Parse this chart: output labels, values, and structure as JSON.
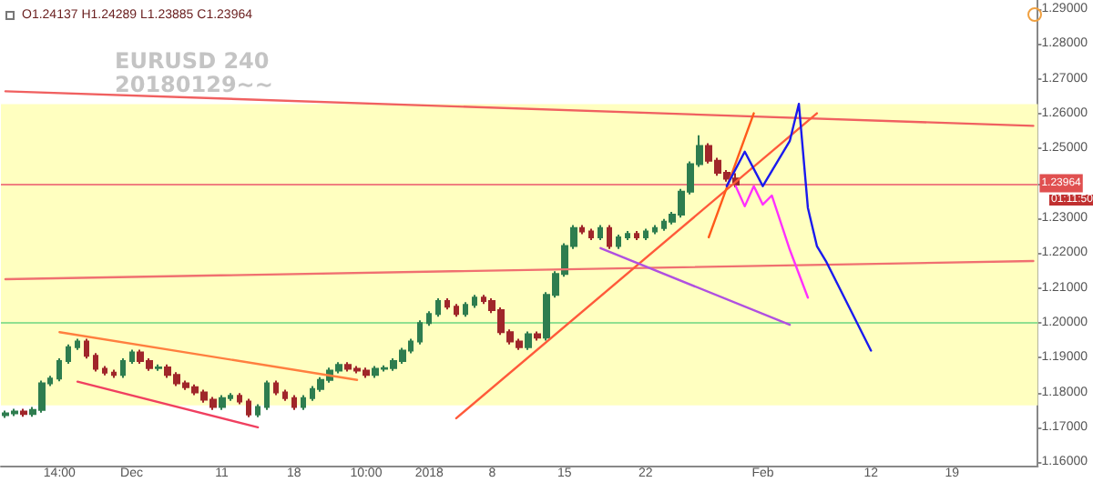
{
  "chart_data": {
    "type": "candlestick",
    "title": "EURUSD 240\n20180129~~",
    "annotations": [
      "O1.24137 H1.24289 L1.23885 C1.23964",
      "01:11:50"
    ],
    "categories": [
      null,
      null,
      null,
      null,
      null,
      null,
      "14:00",
      null,
      null,
      null,
      null,
      null,
      null,
      null,
      "Dec",
      null,
      null,
      null,
      null,
      null,
      null,
      null,
      null,
      null,
      "11",
      null,
      null,
      null,
      null,
      null,
      null,
      null,
      "18",
      null,
      null,
      null,
      null,
      null,
      null,
      null,
      "10:00",
      null,
      null,
      null,
      null,
      null,
      null,
      "2018",
      null,
      null,
      null,
      null,
      null,
      null,
      "8",
      null,
      null,
      null,
      null,
      null,
      null,
      null,
      "15",
      null,
      null,
      null,
      null,
      null,
      null,
      null,
      null,
      "22",
      null,
      null,
      null,
      null,
      null,
      null,
      null,
      null,
      null,
      null,
      null,
      null,
      "Feb",
      null,
      null,
      null,
      null,
      null,
      null,
      null,
      null,
      null,
      null,
      null,
      "12",
      null,
      null,
      null,
      null,
      null,
      null,
      null,
      null,
      "19",
      null,
      null,
      null,
      null,
      null,
      null,
      null,
      null,
      null
    ],
    "ohlc": [
      [
        1.1735,
        1.1748,
        1.1727,
        1.174
      ],
      [
        1.174,
        1.1753,
        1.1732,
        1.1745
      ],
      [
        1.1745,
        1.1753,
        1.173,
        1.1738
      ],
      [
        1.1738,
        1.1758,
        1.173,
        1.175
      ],
      [
        1.175,
        1.1834,
        1.1742,
        1.1826
      ],
      [
        1.1826,
        1.1848,
        1.1818,
        1.184
      ],
      [
        1.184,
        1.1898,
        1.1832,
        1.189
      ],
      [
        1.189,
        1.1938,
        1.1882,
        1.193
      ],
      [
        1.193,
        1.1954,
        1.1922,
        1.1946
      ],
      [
        1.1946,
        1.1954,
        1.1897,
        1.1905
      ],
      [
        1.1905,
        1.1913,
        1.186,
        1.1868
      ],
      [
        1.1868,
        1.1876,
        1.1849,
        1.1857
      ],
      [
        1.1857,
        1.1865,
        1.1842,
        1.185
      ],
      [
        1.185,
        1.1898,
        1.1842,
        1.189
      ],
      [
        1.189,
        1.1923,
        1.1882,
        1.1915
      ],
      [
        1.1915,
        1.1923,
        1.1882,
        1.189
      ],
      [
        1.189,
        1.1898,
        1.1862,
        1.187
      ],
      [
        1.187,
        1.188,
        1.1862,
        1.1872
      ],
      [
        1.1872,
        1.188,
        1.1842,
        1.185
      ],
      [
        1.185,
        1.1858,
        1.1818,
        1.1826
      ],
      [
        1.1826,
        1.1834,
        1.1807,
        1.1815
      ],
      [
        1.1815,
        1.1823,
        1.1792,
        1.18
      ],
      [
        1.18,
        1.1808,
        1.1771,
        1.1779
      ],
      [
        1.1779,
        1.1787,
        1.175,
        1.1758
      ],
      [
        1.1758,
        1.1792,
        1.175,
        1.1784
      ],
      [
        1.1784,
        1.1798,
        1.1776,
        1.179
      ],
      [
        1.179,
        1.1798,
        1.1766,
        1.1774
      ],
      [
        1.1774,
        1.1782,
        1.1729,
        1.1737
      ],
      [
        1.1737,
        1.1766,
        1.1729,
        1.1758
      ],
      [
        1.1758,
        1.1834,
        1.175,
        1.1826
      ],
      [
        1.1826,
        1.1834,
        1.1792,
        1.18
      ],
      [
        1.18,
        1.1808,
        1.1776,
        1.1784
      ],
      [
        1.1784,
        1.1792,
        1.175,
        1.1758
      ],
      [
        1.1758,
        1.1792,
        1.175,
        1.1784
      ],
      [
        1.1784,
        1.1818,
        1.1776,
        1.181
      ],
      [
        1.181,
        1.1844,
        1.1802,
        1.1836
      ],
      [
        1.1836,
        1.1871,
        1.1828,
        1.1863
      ],
      [
        1.1863,
        1.1887,
        1.1855,
        1.1879
      ],
      [
        1.1879,
        1.1887,
        1.186,
        1.1868
      ],
      [
        1.1868,
        1.1876,
        1.1855,
        1.1863
      ],
      [
        1.1863,
        1.1871,
        1.1842,
        1.185
      ],
      [
        1.185,
        1.1876,
        1.1842,
        1.1868
      ],
      [
        1.1868,
        1.1878,
        1.186,
        1.187
      ],
      [
        1.187,
        1.1898,
        1.1862,
        1.189
      ],
      [
        1.189,
        1.1928,
        1.1882,
        1.192
      ],
      [
        1.192,
        1.1954,
        1.1912,
        1.1946
      ],
      [
        1.1946,
        1.2007,
        1.1938,
        1.1999
      ],
      [
        1.1999,
        1.2033,
        1.1991,
        1.2025
      ],
      [
        1.2025,
        1.207,
        1.2017,
        1.2062
      ],
      [
        1.2062,
        1.207,
        1.2038,
        1.2046
      ],
      [
        1.2046,
        1.2054,
        1.2017,
        1.2025
      ],
      [
        1.2025,
        1.2059,
        1.2017,
        1.2051
      ],
      [
        1.2051,
        1.208,
        1.2043,
        1.2072
      ],
      [
        1.2072,
        1.208,
        1.2054,
        1.2062
      ],
      [
        1.2062,
        1.207,
        1.2028,
        1.2036
      ],
      [
        1.2036,
        1.2044,
        1.1965,
        1.1973
      ],
      [
        1.1973,
        1.1981,
        1.1938,
        1.1946
      ],
      [
        1.1946,
        1.1954,
        1.1922,
        1.193
      ],
      [
        1.193,
        1.1975,
        1.1922,
        1.1967
      ],
      [
        1.1967,
        1.1975,
        1.1949,
        1.1957
      ],
      [
        1.1957,
        1.2088,
        1.1949,
        1.208
      ],
      [
        1.208,
        1.2148,
        1.2072,
        1.214
      ],
      [
        1.214,
        1.2228,
        1.2132,
        1.222
      ],
      [
        1.222,
        1.228,
        1.2212,
        1.2272
      ],
      [
        1.2272,
        1.228,
        1.2254,
        1.2262
      ],
      [
        1.2262,
        1.227,
        1.2237,
        1.2245
      ],
      [
        1.2245,
        1.228,
        1.2237,
        1.2272
      ],
      [
        1.2272,
        1.228,
        1.2212,
        1.222
      ],
      [
        1.222,
        1.2253,
        1.2212,
        1.2245
      ],
      [
        1.2245,
        1.2263,
        1.2237,
        1.2255
      ],
      [
        1.2255,
        1.2263,
        1.2237,
        1.2245
      ],
      [
        1.2245,
        1.227,
        1.2237,
        1.2262
      ],
      [
        1.2262,
        1.228,
        1.2254,
        1.2272
      ],
      [
        1.2272,
        1.2298,
        1.2264,
        1.229
      ],
      [
        1.229,
        1.2318,
        1.2282,
        1.231
      ],
      [
        1.231,
        1.2384,
        1.2302,
        1.2376
      ],
      [
        1.2376,
        1.2463,
        1.2368,
        1.2455
      ],
      [
        1.2455,
        1.2538,
        1.2447,
        1.2507
      ],
      [
        1.2507,
        1.2515,
        1.2457,
        1.2465
      ],
      [
        1.2465,
        1.2473,
        1.2422,
        1.243
      ],
      [
        1.243,
        1.2438,
        1.2405,
        1.2413
      ],
      [
        1.24137,
        1.24289,
        1.23885,
        1.23964
      ],
      null,
      null,
      null,
      null,
      null,
      null,
      null,
      null,
      null,
      null,
      null,
      null,
      null,
      null,
      null,
      null,
      null,
      null,
      null,
      null,
      null,
      null,
      null,
      null,
      null,
      null,
      null,
      null,
      null,
      null,
      null,
      null,
      null
    ],
    "colors": [
      "#2e7d4f",
      "#2e7d4f",
      "#a0262a",
      "#2e7d4f",
      "#2e7d4f",
      "#2e7d4f",
      "#2e7d4f",
      "#2e7d4f",
      "#2e7d4f",
      "#a0262a",
      "#a0262a",
      "#a0262a",
      "#a0262a",
      "#2e7d4f",
      "#2e7d4f",
      "#a0262a",
      "#a0262a",
      "#2e7d4f",
      "#a0262a",
      "#a0262a",
      "#a0262a",
      "#a0262a",
      "#a0262a",
      "#a0262a",
      "#2e7d4f",
      "#2e7d4f",
      "#a0262a",
      "#a0262a",
      "#2e7d4f",
      "#2e7d4f",
      "#a0262a",
      "#a0262a",
      "#a0262a",
      "#2e7d4f",
      "#2e7d4f",
      "#2e7d4f",
      "#2e7d4f",
      "#2e7d4f",
      "#a0262a",
      "#a0262a",
      "#a0262a",
      "#2e7d4f",
      "#2e7d4f",
      "#2e7d4f",
      "#2e7d4f",
      "#2e7d4f",
      "#2e7d4f",
      "#2e7d4f",
      "#2e7d4f",
      "#a0262a",
      "#a0262a",
      "#2e7d4f",
      "#2e7d4f",
      "#a0262a",
      "#a0262a",
      "#a0262a",
      "#a0262a",
      "#a0262a",
      "#2e7d4f",
      "#a0262a",
      "#2e7d4f",
      "#2e7d4f",
      "#2e7d4f",
      "#2e7d4f",
      "#a0262a",
      "#a0262a",
      "#2e7d4f",
      "#a0262a",
      "#2e7d4f",
      "#2e7d4f",
      "#a0262a",
      "#2e7d4f",
      "#2e7d4f",
      "#2e7d4f",
      "#2e7d4f",
      "#2e7d4f",
      "#2e7d4f",
      "#2e7d4f",
      "#a0262a",
      "#a0262a",
      "#a0262a",
      "#a0262a",
      null,
      null,
      null,
      null,
      null,
      null,
      null,
      null,
      null,
      null,
      null,
      null,
      null,
      null,
      null,
      null,
      null,
      null,
      null,
      null,
      null,
      null,
      null,
      null,
      null,
      null,
      null,
      null,
      null,
      null,
      null,
      null,
      null
    ],
    "series": [
      {
        "type": "line",
        "color": "#f06060",
        "values": [
          1.2664,
          null,
          null,
          null,
          null,
          null,
          null,
          null,
          null,
          null,
          null,
          null,
          null,
          null,
          null,
          null,
          null,
          null,
          null,
          null,
          null,
          null,
          null,
          null,
          null,
          null,
          null,
          null,
          null,
          null,
          null,
          null,
          null,
          null,
          null,
          null,
          null,
          null,
          null,
          null,
          null,
          null,
          null,
          null,
          null,
          null,
          null,
          null,
          null,
          null,
          null,
          null,
          null,
          null,
          null,
          null,
          null,
          null,
          null,
          null,
          null,
          null,
          null,
          null,
          null,
          null,
          null,
          null,
          null,
          null,
          null,
          null,
          null,
          null,
          null,
          null,
          null,
          null,
          null,
          null,
          null,
          null,
          null,
          null,
          null,
          null,
          null,
          null,
          null,
          null,
          null,
          null,
          null,
          null,
          null,
          null,
          null,
          null,
          null,
          null,
          null,
          null,
          null,
          null,
          null,
          null,
          null,
          null,
          null,
          null,
          null,
          null,
          null,
          null,
          1.2565
        ]
      },
      {
        "type": "line",
        "color": "#f07070",
        "values": [
          1.2125,
          null,
          null,
          null,
          null,
          null,
          null,
          null,
          null,
          null,
          null,
          null,
          null,
          null,
          null,
          null,
          null,
          null,
          null,
          null,
          null,
          null,
          null,
          null,
          null,
          null,
          null,
          null,
          null,
          null,
          null,
          null,
          null,
          null,
          null,
          null,
          null,
          null,
          null,
          null,
          null,
          null,
          null,
          null,
          null,
          null,
          null,
          null,
          null,
          null,
          null,
          null,
          null,
          null,
          null,
          null,
          null,
          null,
          null,
          null,
          null,
          null,
          null,
          null,
          null,
          null,
          null,
          null,
          null,
          null,
          null,
          null,
          null,
          null,
          null,
          null,
          null,
          null,
          null,
          null,
          null,
          null,
          null,
          null,
          null,
          null,
          null,
          null,
          null,
          null,
          null,
          null,
          null,
          null,
          null,
          null,
          null,
          null,
          null,
          null,
          null,
          null,
          null,
          null,
          null,
          null,
          null,
          null,
          null,
          null,
          null,
          null,
          null,
          null,
          1.2177
        ]
      },
      {
        "type": "line",
        "color": "#ff7f3f",
        "values": [
          null,
          null,
          null,
          null,
          null,
          null,
          1.1973,
          null,
          null,
          null,
          null,
          null,
          null,
          null,
          null,
          null,
          null,
          null,
          null,
          null,
          null,
          null,
          null,
          null,
          null,
          null,
          null,
          null,
          null,
          null,
          null,
          null,
          null,
          null,
          null,
          null,
          null,
          null,
          null,
          1.1836,
          null,
          null,
          null,
          null,
          null,
          null,
          null,
          null,
          null,
          null,
          null,
          null,
          null,
          null,
          null,
          null,
          null,
          null,
          null,
          null,
          null,
          null,
          null,
          null,
          null,
          null,
          null,
          null,
          null,
          null,
          null,
          null,
          null,
          null,
          null,
          null,
          null,
          null,
          null,
          null,
          null,
          null,
          null,
          null,
          null,
          null,
          null,
          null,
          null,
          null,
          null,
          null,
          null,
          null,
          null,
          null,
          null,
          null,
          null,
          null,
          null,
          null,
          null,
          null,
          null,
          null,
          null,
          null,
          null,
          null,
          null,
          null,
          null,
          null,
          null
        ]
      },
      {
        "type": "line",
        "color": "#f04060",
        "values": [
          null,
          null,
          null,
          null,
          null,
          null,
          null,
          null,
          1.1831,
          null,
          null,
          null,
          null,
          null,
          null,
          null,
          null,
          null,
          null,
          null,
          null,
          null,
          null,
          null,
          null,
          null,
          null,
          null,
          1.17,
          null,
          null,
          null,
          null,
          null,
          null,
          null,
          null,
          null,
          null,
          null,
          null,
          null,
          null,
          null,
          null,
          null,
          null,
          null,
          null,
          null,
          null,
          null,
          null,
          null,
          null,
          null,
          null,
          null,
          null,
          null,
          null,
          null,
          null,
          null,
          null,
          null,
          null,
          null,
          null,
          null,
          null,
          null,
          null,
          null,
          null,
          null,
          null,
          null,
          null,
          null,
          null,
          null,
          null,
          null,
          null,
          null,
          null,
          null,
          null,
          null,
          null,
          null,
          null,
          null,
          null,
          null,
          null,
          null,
          null,
          null,
          null,
          null,
          null,
          null,
          null,
          null,
          null,
          null,
          null,
          null,
          null,
          null,
          null,
          null,
          null
        ]
      },
      {
        "type": "line",
        "color": "#ff5a3a",
        "values": [
          null,
          null,
          null,
          null,
          null,
          null,
          null,
          null,
          null,
          null,
          null,
          null,
          null,
          null,
          null,
          null,
          null,
          null,
          null,
          null,
          null,
          null,
          null,
          null,
          null,
          null,
          null,
          null,
          null,
          null,
          null,
          null,
          null,
          null,
          null,
          null,
          null,
          null,
          null,
          null,
          null,
          null,
          null,
          null,
          null,
          null,
          null,
          null,
          null,
          null,
          1.1726,
          null,
          null,
          null,
          null,
          null,
          null,
          null,
          null,
          null,
          null,
          null,
          null,
          null,
          null,
          null,
          null,
          null,
          null,
          null,
          null,
          null,
          null,
          null,
          null,
          null,
          null,
          null,
          null,
          null,
          null,
          null,
          null,
          null,
          null,
          null,
          null,
          null,
          null,
          null,
          1.2601,
          null,
          null,
          null,
          null,
          null,
          null,
          null,
          null,
          null,
          null,
          null,
          null,
          null,
          null,
          null,
          null,
          null,
          null,
          null,
          null,
          null,
          null,
          null,
          null
        ]
      },
      {
        "type": "line",
        "color": "#ff5a1a",
        "values": [
          null,
          null,
          null,
          null,
          null,
          null,
          null,
          null,
          null,
          null,
          null,
          null,
          null,
          null,
          null,
          null,
          null,
          null,
          null,
          null,
          null,
          null,
          null,
          null,
          null,
          null,
          null,
          null,
          null,
          null,
          null,
          null,
          null,
          null,
          null,
          null,
          null,
          null,
          null,
          null,
          null,
          null,
          null,
          null,
          null,
          null,
          null,
          null,
          null,
          null,
          null,
          null,
          null,
          null,
          null,
          null,
          null,
          null,
          null,
          null,
          null,
          null,
          null,
          null,
          null,
          null,
          null,
          null,
          null,
          null,
          null,
          null,
          null,
          null,
          null,
          null,
          null,
          null,
          1.2245,
          null,
          null,
          null,
          null,
          1.2601,
          null,
          null,
          null,
          null,
          null,
          null,
          null,
          null,
          null,
          null,
          null,
          null,
          null,
          null,
          null,
          null,
          null,
          null,
          null,
          null,
          null,
          null,
          null,
          null,
          null,
          null,
          null,
          null,
          null,
          null,
          null
        ]
      },
      {
        "type": "line",
        "color": "#b050e0",
        "values": [
          null,
          null,
          null,
          null,
          null,
          null,
          null,
          null,
          null,
          null,
          null,
          null,
          null,
          null,
          null,
          null,
          null,
          null,
          null,
          null,
          null,
          null,
          null,
          null,
          null,
          null,
          null,
          null,
          null,
          null,
          null,
          null,
          null,
          null,
          null,
          null,
          null,
          null,
          null,
          null,
          null,
          null,
          null,
          null,
          null,
          null,
          null,
          null,
          null,
          null,
          null,
          null,
          null,
          null,
          null,
          null,
          null,
          null,
          null,
          null,
          null,
          null,
          null,
          null,
          null,
          null,
          1.2214,
          null,
          null,
          null,
          null,
          null,
          null,
          null,
          null,
          null,
          null,
          null,
          null,
          null,
          null,
          null,
          null,
          null,
          null,
          null,
          null,
          1.1994,
          null,
          null,
          null,
          null,
          null,
          null,
          null,
          null,
          null,
          null,
          null,
          null,
          null,
          null,
          null,
          null,
          null,
          null,
          null,
          null,
          null,
          null,
          null,
          null,
          null,
          null,
          null
        ]
      },
      {
        "type": "line",
        "color": "#1a1aee",
        "values": [
          null,
          null,
          null,
          null,
          null,
          null,
          null,
          null,
          null,
          null,
          null,
          null,
          null,
          null,
          null,
          null,
          null,
          null,
          null,
          null,
          null,
          null,
          null,
          null,
          null,
          null,
          null,
          null,
          null,
          null,
          null,
          null,
          null,
          null,
          null,
          null,
          null,
          null,
          null,
          null,
          null,
          null,
          null,
          null,
          null,
          null,
          null,
          null,
          null,
          null,
          null,
          null,
          null,
          null,
          null,
          null,
          null,
          null,
          null,
          null,
          null,
          null,
          null,
          null,
          null,
          null,
          null,
          null,
          null,
          null,
          null,
          null,
          null,
          null,
          null,
          null,
          null,
          null,
          null,
          null,
          1.2392,
          null,
          1.2491,
          null,
          1.2392,
          null,
          null,
          1.2522,
          1.2628,
          1.233,
          1.222,
          1.2177,
          null,
          null,
          null,
          null,
          1.192,
          null,
          null,
          null,
          null,
          null,
          null,
          null,
          null,
          null,
          null,
          null,
          null,
          null,
          null,
          null,
          null,
          null,
          null
        ]
      },
      {
        "type": "line",
        "color": "#ff30ff",
        "values": [
          null,
          null,
          null,
          null,
          null,
          null,
          null,
          null,
          null,
          null,
          null,
          null,
          null,
          null,
          null,
          null,
          null,
          null,
          null,
          null,
          null,
          null,
          null,
          null,
          null,
          null,
          null,
          null,
          null,
          null,
          null,
          null,
          null,
          null,
          null,
          null,
          null,
          null,
          null,
          null,
          null,
          null,
          null,
          null,
          null,
          null,
          null,
          null,
          null,
          null,
          null,
          null,
          null,
          null,
          null,
          null,
          null,
          null,
          null,
          null,
          null,
          null,
          null,
          null,
          null,
          null,
          null,
          null,
          null,
          null,
          null,
          null,
          null,
          null,
          null,
          null,
          null,
          null,
          null,
          null,
          null,
          1.2392,
          1.2334,
          1.2392,
          1.2339,
          1.2365,
          null,
          1.2209,
          null,
          1.2072,
          null,
          null,
          null,
          null,
          null,
          null,
          null,
          null,
          null,
          null,
          null,
          null,
          null,
          null,
          null,
          null,
          null,
          null,
          null,
          null,
          null,
          null,
          null,
          null,
          null
        ]
      }
    ],
    "bands": [
      {
        "axis": "y",
        "from": 1.1763,
        "to": 1.2627,
        "color": "#ffffc0"
      }
    ],
    "ref_lines": [
      {
        "axis": "y",
        "value": 1.2,
        "color": "#90e090"
      },
      {
        "axis": "y",
        "value": 1.23964,
        "label": "1.23964",
        "color": "#f08080"
      }
    ],
    "ylim": [
      1.159,
      1.2926
    ],
    "yticks": [
      {
        "value": 1.16,
        "label": "1.16000"
      },
      {
        "value": 1.17,
        "label": "1.17000"
      },
      {
        "value": 1.18,
        "label": "1.18000"
      },
      {
        "value": 1.19,
        "label": "1.19000"
      },
      {
        "value": 1.2,
        "label": "1.20000"
      },
      {
        "value": 1.21,
        "label": "1.21000"
      },
      {
        "value": 1.22,
        "label": "1.22000"
      },
      {
        "value": 1.23,
        "label": "1.23000"
      },
      {
        "value": 1.24,
        "label": null
      },
      {
        "value": 1.25,
        "label": "1.25000"
      },
      {
        "value": 1.26,
        "label": "1.26000"
      },
      {
        "value": 1.27,
        "label": "1.27000"
      },
      {
        "value": 1.28,
        "label": "1.28000"
      },
      {
        "value": 1.29,
        "label": "1.29000"
      }
    ],
    "grid": false
  }
}
